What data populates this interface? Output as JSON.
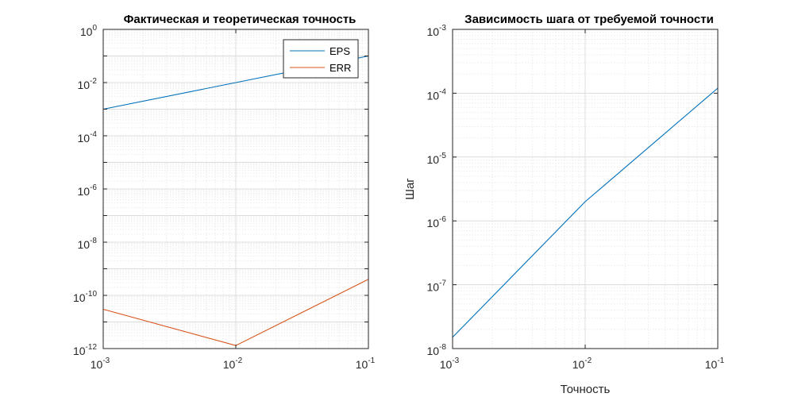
{
  "chart_data": [
    {
      "type": "line",
      "title": "Фактическая и теоретическая точность",
      "xlabel": "",
      "ylabel": "",
      "xscale": "log",
      "yscale": "log",
      "xlim": [
        0.001,
        0.1
      ],
      "ylim": [
        1e-12,
        1
      ],
      "xticks": [
        {
          "base": "10",
          "exp": "-3"
        },
        {
          "base": "10",
          "exp": "-2"
        },
        {
          "base": "10",
          "exp": "-1"
        }
      ],
      "yticks": [
        {
          "base": "10",
          "exp": "-12"
        },
        {
          "base": "10",
          "exp": "-10"
        },
        {
          "base": "10",
          "exp": "-8"
        },
        {
          "base": "10",
          "exp": "-6"
        },
        {
          "base": "10",
          "exp": "-4"
        },
        {
          "base": "10",
          "exp": "-2"
        },
        {
          "base": "10",
          "exp": "0"
        }
      ],
      "grid": true,
      "legend_position": "top-right",
      "series": [
        {
          "name": "EPS",
          "color": "#0072bd",
          "x": [
            0.001,
            0.01,
            0.1
          ],
          "y": [
            0.001,
            0.01,
            0.1
          ]
        },
        {
          "name": "ERR",
          "color": "#d95319",
          "x": [
            0.001,
            0.01,
            0.1
          ],
          "y": [
            3e-11,
            1.3e-12,
            4e-10
          ]
        }
      ]
    },
    {
      "type": "line",
      "title": "Зависимость шага от требуемой точности",
      "xlabel": "Точность",
      "ylabel": "Шаг",
      "xscale": "log",
      "yscale": "log",
      "xlim": [
        0.001,
        0.1
      ],
      "ylim": [
        1e-08,
        0.001
      ],
      "xticks": [
        {
          "base": "10",
          "exp": "-3"
        },
        {
          "base": "10",
          "exp": "-2"
        },
        {
          "base": "10",
          "exp": "-1"
        }
      ],
      "yticks": [
        {
          "base": "10",
          "exp": "-8"
        },
        {
          "base": "10",
          "exp": "-7"
        },
        {
          "base": "10",
          "exp": "-6"
        },
        {
          "base": "10",
          "exp": "-5"
        },
        {
          "base": "10",
          "exp": "-4"
        },
        {
          "base": "10",
          "exp": "-3"
        }
      ],
      "grid": true,
      "series": [
        {
          "color": "#0072bd",
          "x": [
            0.001,
            0.01,
            0.1
          ],
          "y": [
            1.5e-08,
            2e-06,
            0.00012
          ]
        }
      ]
    }
  ]
}
